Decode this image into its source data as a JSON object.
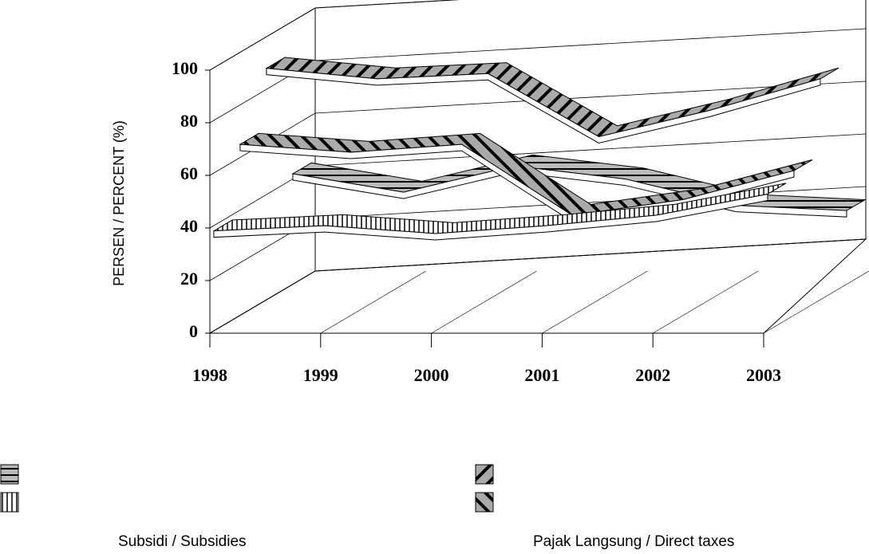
{
  "chart_data": {
    "type": "ribbon3d",
    "y_label": "PERSEN / PERCENT (%)",
    "categories": [
      "1998",
      "1999",
      "2000",
      "2001",
      "2002",
      "2003"
    ],
    "ylim": [
      0,
      100
    ],
    "yticks": [
      0,
      20,
      40,
      60,
      80,
      100
    ],
    "grid": true,
    "series": [
      {
        "name": null,
        "color": "#000000",
        "hatch": "horizontal",
        "values": [
          42,
          35,
          45,
          40,
          30,
          28
        ]
      },
      {
        "name": "Subsidi / Subsidies",
        "color": "#000000",
        "hatch": "vertical",
        "values": [
          38,
          40,
          37,
          40,
          44,
          52
        ]
      },
      {
        "name": null,
        "color": "#000000",
        "hatch": "forward",
        "values": [
          88,
          84,
          86,
          62,
          72,
          84
        ]
      },
      {
        "name": "Pajak Langsung / Direct taxes",
        "color": "#000000",
        "hatch": "backward",
        "values": [
          65,
          62,
          65,
          38,
          44,
          55
        ]
      }
    ]
  }
}
